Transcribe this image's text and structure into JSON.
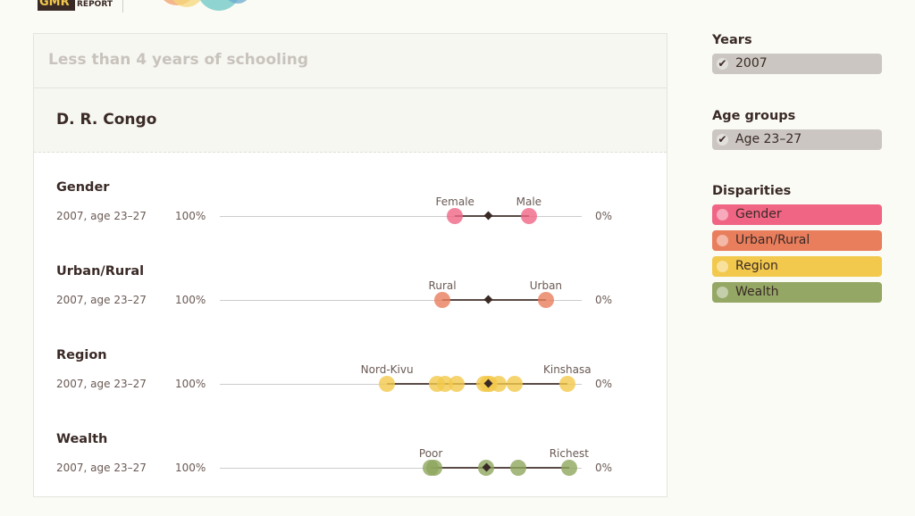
{
  "logo": {
    "text": "GMR",
    "sub": "REPORT"
  },
  "panel": {
    "title": "Less than 4 years of schooling",
    "country": "D. R. Congo"
  },
  "axis": {
    "left_label": "100%",
    "right_label": "0%",
    "min": 0,
    "max": 100
  },
  "rows": [
    {
      "title": "Gender",
      "sub": "2007, age 23–27",
      "color": "#f06584",
      "low_label": "Female",
      "high_label": "Male",
      "points": [
        35.0,
        14.6
      ],
      "average": 25.7
    },
    {
      "title": "Urban/Rural",
      "sub": "2007, age 23–27",
      "color": "#e97e5d",
      "low_label": "Rural",
      "high_label": "Urban",
      "points": [
        38.5,
        9.9
      ],
      "average": 25.7
    },
    {
      "title": "Region",
      "sub": "2007, age 23–27",
      "color": "#f2c94c",
      "low_label": "Nord-Kivu",
      "high_label": "Kinshasa",
      "points": [
        53.8,
        40.0,
        37.8,
        34.6,
        26.9,
        25.9,
        25.4,
        23.0,
        18.5,
        4.0
      ],
      "average": 25.7
    },
    {
      "title": "Wealth",
      "sub": "2007, age 23–27",
      "color": "#8fa65e",
      "low_label": "Poor",
      "high_label": "Richest",
      "points": [
        41.7,
        40.7,
        26.4,
        17.5,
        3.5
      ],
      "average": 26.2
    }
  ],
  "sidebar": {
    "years": {
      "title": "Years",
      "items": [
        {
          "label": "2007",
          "checked": true
        }
      ]
    },
    "ages": {
      "title": "Age groups",
      "items": [
        {
          "label": "Age 23–27",
          "checked": true
        }
      ]
    },
    "disparities": {
      "title": "Disparities",
      "items": [
        {
          "label": "Gender",
          "color": "#f06584"
        },
        {
          "label": "Urban/Rural",
          "color": "#e97e5d"
        },
        {
          "label": "Region",
          "color": "#f2c94c"
        },
        {
          "label": "Wealth",
          "color": "#94a765"
        }
      ]
    }
  }
}
